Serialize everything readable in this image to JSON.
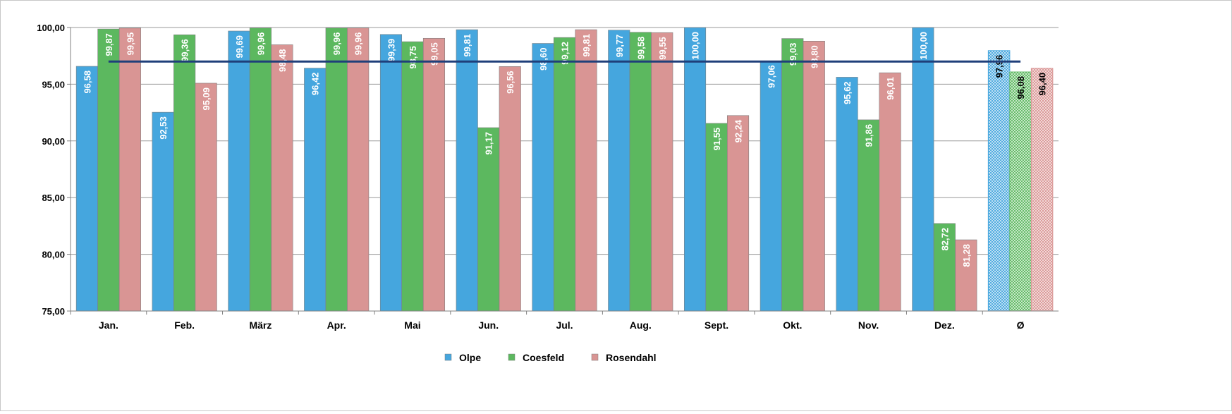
{
  "chart_data": {
    "type": "bar",
    "title": "",
    "xlabel": "",
    "ylabel": "",
    "ylim": [
      75,
      100
    ],
    "yticks": [
      "75,00",
      "80,00",
      "85,00",
      "90,00",
      "95,00",
      "100,00"
    ],
    "ytick_values": [
      75,
      80,
      85,
      90,
      95,
      100
    ],
    "grid": true,
    "legend_position": "bottom-center",
    "categories": [
      "Jan.",
      "Feb.",
      "März",
      "Apr.",
      "Mai",
      "Jun.",
      "Jul.",
      "Aug.",
      "Sept.",
      "Okt.",
      "Nov.",
      "Dez.",
      "Ø"
    ],
    "average_category": "Ø",
    "series": [
      {
        "name": "Olpe",
        "color": "#45A6DE",
        "values": [
          96.58,
          92.53,
          99.69,
          96.42,
          99.39,
          99.81,
          98.6,
          99.77,
          100.0,
          97.06,
          95.62,
          100.0,
          97.96
        ],
        "labels": [
          "96,58",
          "92,53",
          "99,69",
          "96,42",
          "99,39",
          "99,81",
          "98,60",
          "99,77",
          "100,00",
          "97,06",
          "95,62",
          "100,00",
          "97,96"
        ]
      },
      {
        "name": "Coesfeld",
        "color": "#5CB85F",
        "values": [
          99.87,
          99.36,
          99.96,
          99.96,
          98.75,
          91.17,
          99.12,
          99.58,
          91.55,
          99.03,
          91.86,
          82.72,
          96.08
        ],
        "labels": [
          "99,87",
          "99,36",
          "99,96",
          "99,96",
          "98,75",
          "91,17",
          "99,12",
          "99,58",
          "91,55",
          "99,03",
          "91,86",
          "82,72",
          "96,08"
        ]
      },
      {
        "name": "Rosendahl",
        "color": "#D99594",
        "values": [
          99.95,
          95.09,
          98.48,
          99.96,
          99.05,
          96.56,
          99.81,
          99.55,
          92.24,
          98.8,
          96.01,
          81.28,
          96.4
        ],
        "labels": [
          "99,95",
          "95,09",
          "98,48",
          "99,96",
          "99,05",
          "96,56",
          "99,81",
          "99,55",
          "92,24",
          "98,80",
          "96,01",
          "81,28",
          "96,40"
        ]
      }
    ],
    "reference_line": {
      "value": 97,
      "color": "#1F3F7A",
      "from_category": 0,
      "to_category": 12
    }
  }
}
